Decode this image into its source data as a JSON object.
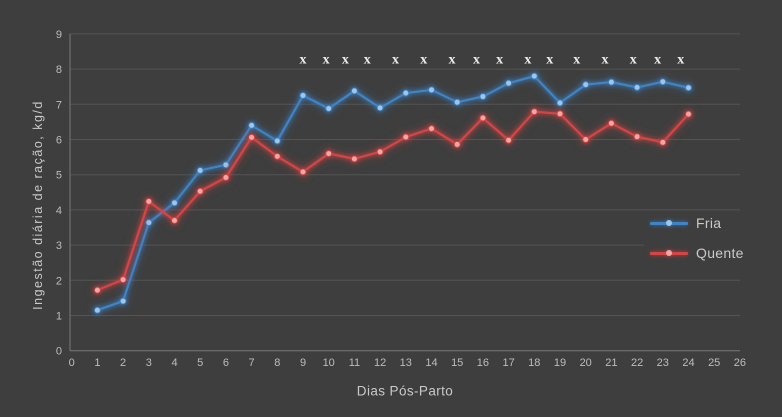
{
  "chart_data": {
    "type": "line",
    "title": "",
    "xlabel": "Dias Pós-Parto",
    "ylabel": "Ingestão diária de ração, kg/d",
    "xlim": [
      0,
      26
    ],
    "ylim": [
      0,
      9
    ],
    "x_ticks": [
      0,
      1,
      2,
      3,
      4,
      5,
      6,
      7,
      8,
      9,
      10,
      11,
      12,
      13,
      14,
      15,
      16,
      17,
      18,
      19,
      20,
      21,
      22,
      23,
      24,
      25,
      26
    ],
    "y_ticks": [
      0,
      1,
      2,
      3,
      4,
      5,
      6,
      7,
      8,
      9
    ],
    "grid": true,
    "legend_position": "right-middle",
    "x": [
      1,
      2,
      3,
      4,
      5,
      6,
      7,
      8,
      9,
      10,
      11,
      12,
      13,
      14,
      15,
      16,
      17,
      18,
      19,
      20,
      21,
      22,
      23,
      24
    ],
    "series": [
      {
        "name": "Fria",
        "color": "#3E84C6",
        "marker_color": "#9EC6EA",
        "values": [
          1.15,
          1.41,
          3.64,
          4.2,
          5.12,
          5.28,
          6.4,
          5.96,
          7.25,
          6.88,
          7.38,
          6.9,
          7.32,
          7.41,
          7.06,
          7.22,
          7.6,
          7.8,
          7.04,
          7.56,
          7.63,
          7.48,
          7.64,
          7.47
        ]
      },
      {
        "name": "Quente",
        "color": "#D64545",
        "marker_color": "#F2A6A6",
        "values": [
          1.72,
          2.02,
          4.24,
          3.7,
          4.53,
          4.92,
          6.06,
          5.52,
          5.08,
          5.6,
          5.45,
          5.65,
          6.07,
          6.31,
          5.86,
          6.61,
          5.98,
          6.79,
          6.73,
          6.0,
          6.46,
          6.08,
          5.92,
          6.72
        ]
      }
    ],
    "significance_markers": {
      "symbol": "x",
      "color": "#EDEDED",
      "y": 8.3,
      "x_days": [
        9.0,
        9.9,
        10.65,
        11.5,
        12.6,
        13.7,
        14.8,
        15.75,
        16.65,
        17.75,
        18.6,
        19.65,
        20.75,
        21.85,
        22.8,
        23.7
      ]
    },
    "colors": {
      "background": "#3E3E3E",
      "gridline": "#545454",
      "axis_line": "#7A7A7A",
      "tick_text": "#BDBDBD",
      "title_text": "#C9C9C9"
    }
  }
}
